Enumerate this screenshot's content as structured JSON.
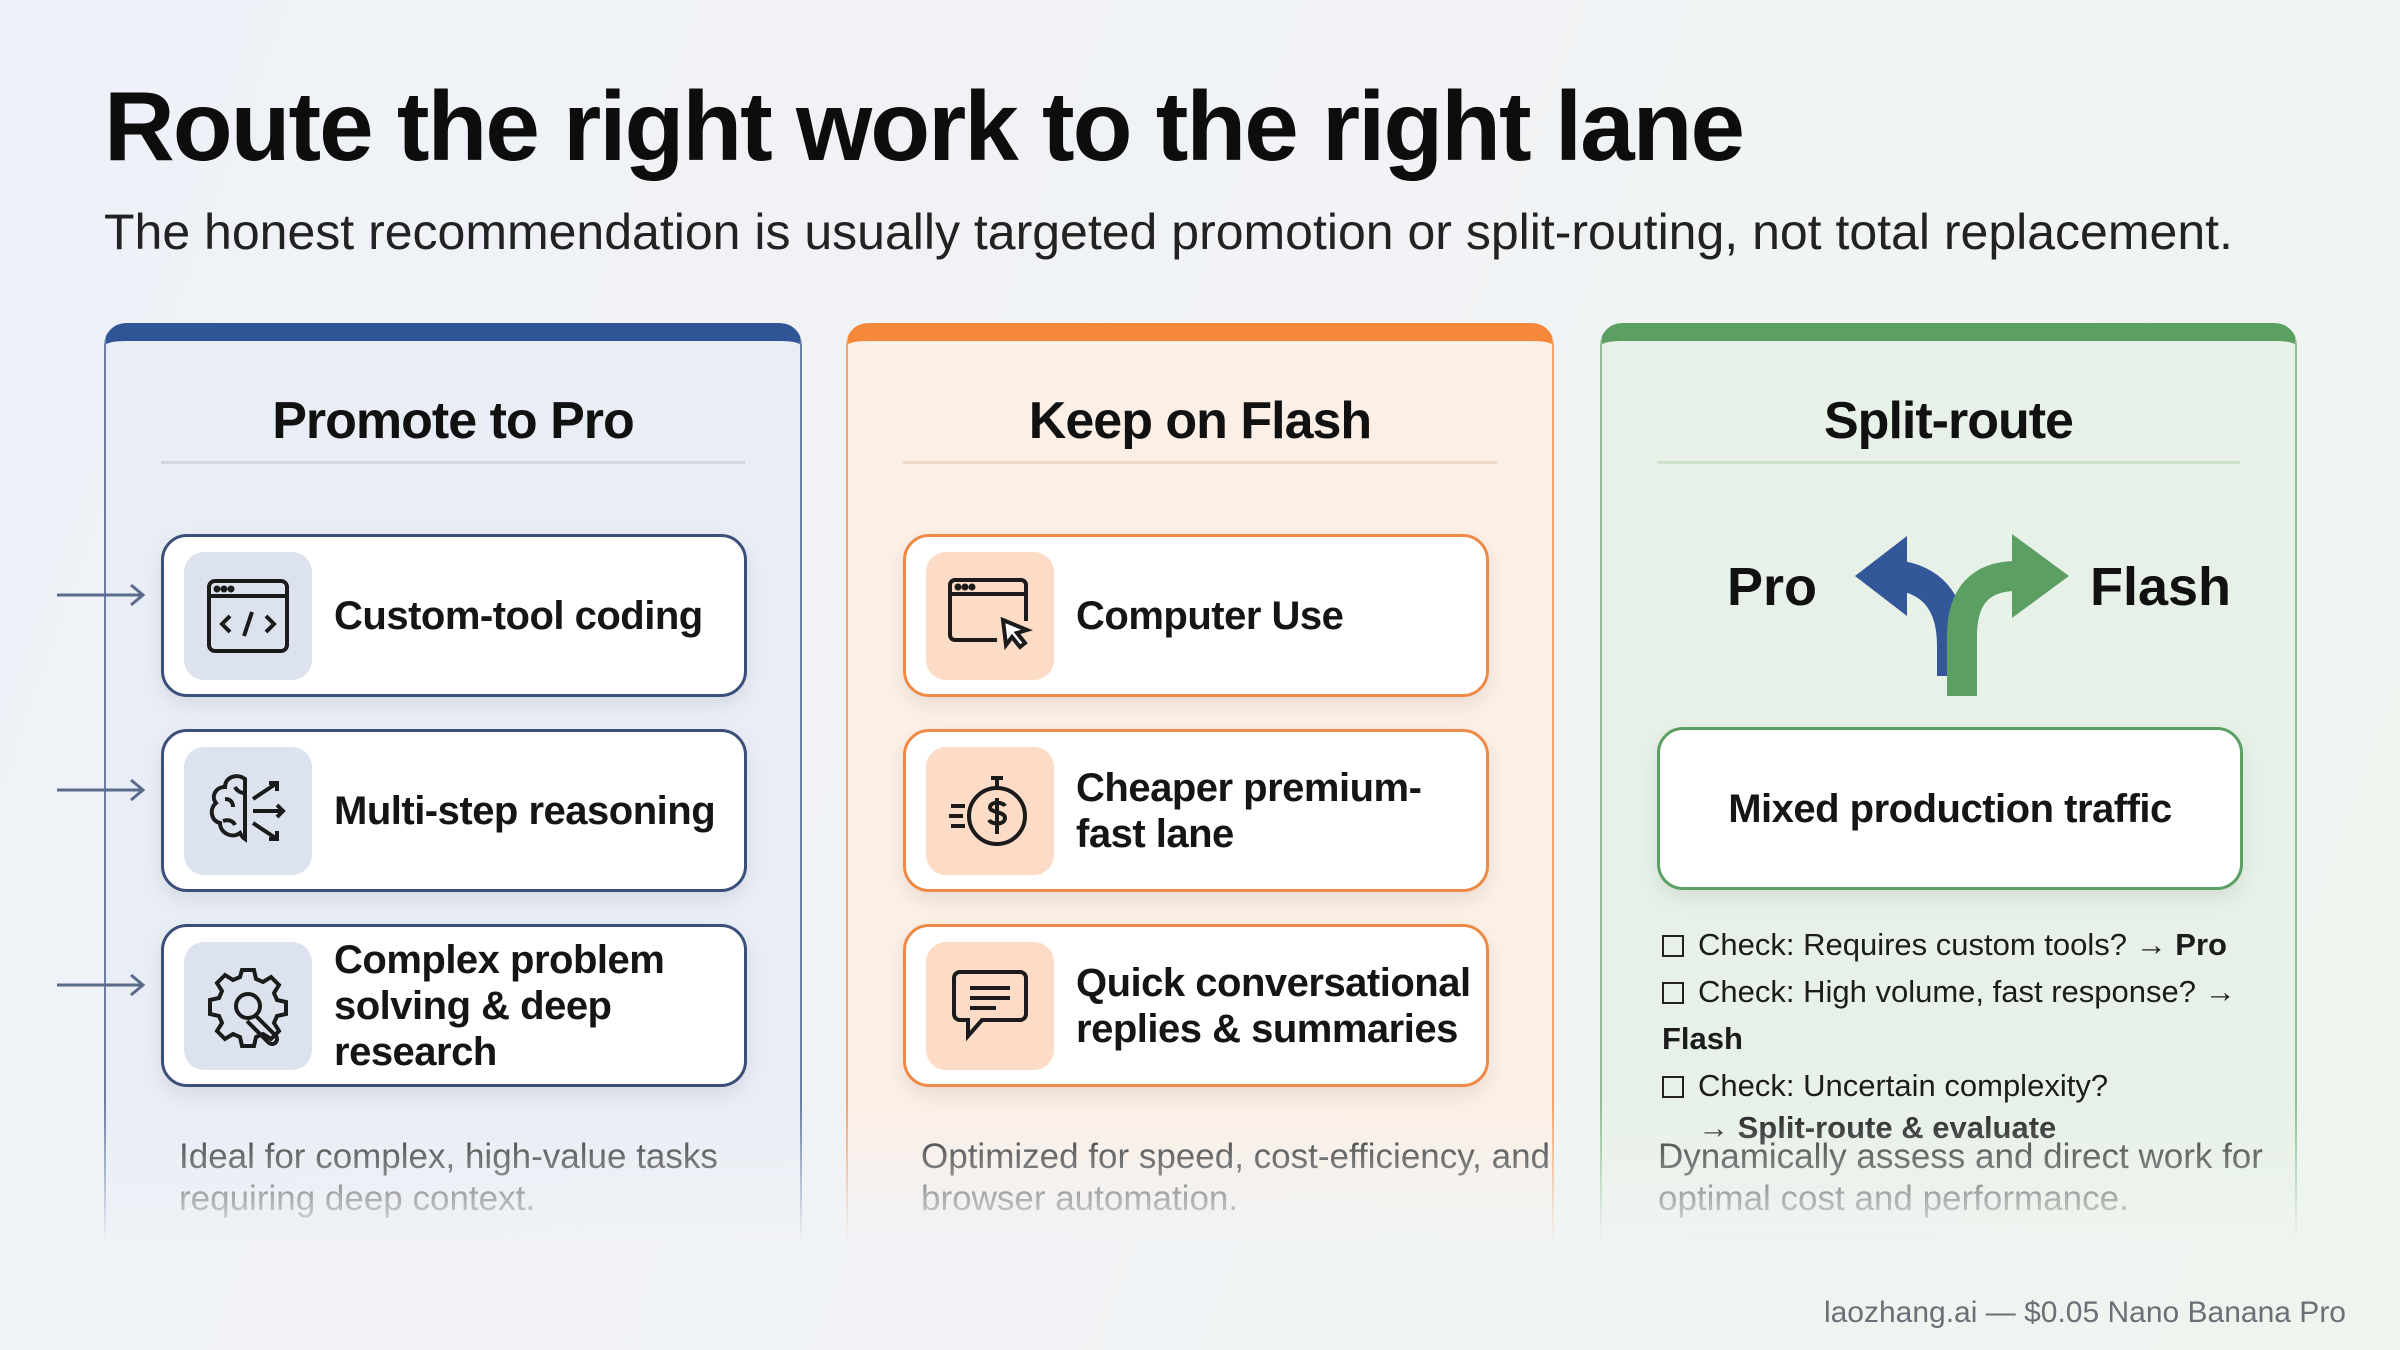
{
  "header": {
    "title": "Route the right work to the right lane",
    "subtitle": "The honest recommendation is usually targeted promotion or split-routing, not total replacement."
  },
  "colors": {
    "pro": "#2f5597",
    "flash": "#f5883a",
    "split": "#5b9f63"
  },
  "columns": [
    {
      "title": "Promote to Pro",
      "items": [
        {
          "label": "Custom-tool coding",
          "icon": "code-window-icon"
        },
        {
          "label": "Multi-step reasoning",
          "icon": "brain-icon"
        },
        {
          "label": "Complex problem solving & deep research",
          "icon": "gear-wrench-icon"
        }
      ],
      "description": "Ideal for complex, high-value tasks requiring deep context."
    },
    {
      "title": "Keep on Flash",
      "items": [
        {
          "label": "Computer Use",
          "icon": "browser-cursor-icon"
        },
        {
          "label": "Cheaper premium-fast lane",
          "icon": "fast-dollar-icon"
        },
        {
          "label": "Quick conversational replies & summaries",
          "icon": "chat-bubble-icon"
        }
      ],
      "description": "Optimized for speed, cost-efficiency, and browser automation."
    },
    {
      "title": "Split-route",
      "route": {
        "left": "Pro",
        "right": "Flash"
      },
      "box": "Mixed production traffic",
      "checks": [
        {
          "text": "Check: Requires custom tools?",
          "arrow": "→",
          "target": "Pro"
        },
        {
          "text": "Check: High volume, fast response?",
          "arrow": "→",
          "target": "Flash"
        },
        {
          "text": "Check: Uncertain complexity?",
          "arrow": "→",
          "target": "Split-route & evaluate"
        }
      ],
      "description": "Dynamically assess and direct work for optimal cost and performance."
    }
  ],
  "footer": "laozhang.ai — $0.05 Nano Banana Pro"
}
